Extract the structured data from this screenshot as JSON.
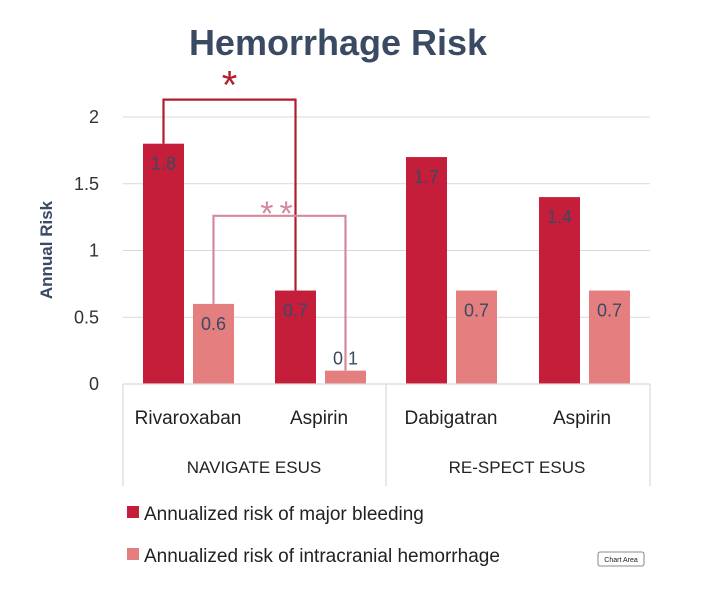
{
  "chart_data": {
    "type": "bar",
    "title": "Hemorrhage Risk",
    "ylabel": "Annual Risk",
    "xlabel": "",
    "ylim": [
      0,
      2
    ],
    "yticks": [
      "0",
      "0.5",
      "1",
      "1.5",
      "2"
    ],
    "grid": true,
    "legend_position": "bottom",
    "groups": [
      {
        "label": "NAVIGATE ESUS",
        "categories": [
          "Rivaroxaban",
          "Aspirin"
        ]
      },
      {
        "label": "RE-SPECT ESUS",
        "categories": [
          "Dabigatran",
          "Aspirin"
        ]
      }
    ],
    "categories": [
      "Rivaroxaban",
      "Aspirin",
      "Dabigatran",
      "Aspirin"
    ],
    "series": [
      {
        "name": "Annualized risk of major bleeding",
        "color": "#c41e3a",
        "values": [
          1.8,
          0.7,
          1.7,
          1.4
        ],
        "labels": [
          "1.8",
          "0.7",
          "1.7",
          "1.4"
        ]
      },
      {
        "name": "Annualized risk of intracranial hemorrhage",
        "color": "#e57f7f",
        "values": [
          0.6,
          0.1,
          0.7,
          0.7
        ],
        "labels": [
          "0.6",
          "0.1",
          "0.7",
          "0.7"
        ]
      }
    ],
    "annotations": [
      {
        "text": "*",
        "color": "#b01e2e",
        "series": 0,
        "from": 0,
        "to": 1,
        "y": 2.13
      },
      {
        "text": "**",
        "color": "#d48a9c",
        "series": 1,
        "from": 0,
        "to": 1,
        "y": 1.26
      }
    ],
    "chip_label": "Chart Area"
  }
}
